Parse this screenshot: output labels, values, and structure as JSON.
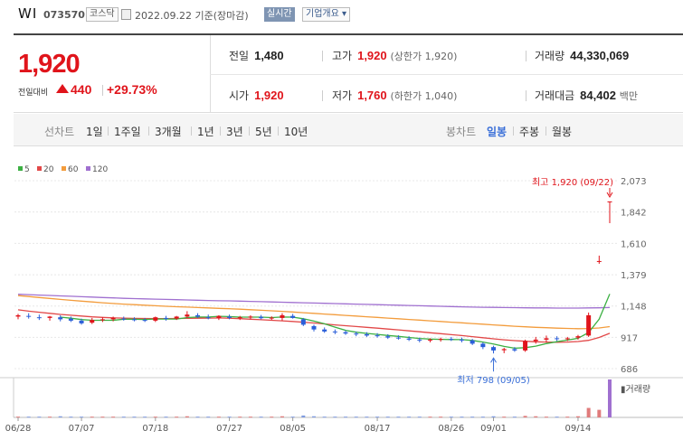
{
  "header": {
    "name": "WI",
    "code": "073570",
    "market": "코스닥",
    "date": "2022.09.22 기준(장마감)",
    "live": "실시간",
    "corp_info": "기업개요 ▾"
  },
  "price": {
    "current": "1,920",
    "change_label": "전일대비",
    "change": "440",
    "change_pct": "+29.73%"
  },
  "stats": {
    "prev_close": {
      "label": "전일",
      "value": "1,480"
    },
    "high": {
      "label": "고가",
      "value": "1,920",
      "sub": "(상한가 1,920)"
    },
    "volume": {
      "label": "거래량",
      "value": "44,330,069"
    },
    "open": {
      "label": "시가",
      "value": "1,920"
    },
    "low": {
      "label": "저가",
      "value": "1,760",
      "sub": "(하한가 1,040)"
    },
    "amount": {
      "label": "거래대금",
      "value": "84,402",
      "unit": "백만"
    }
  },
  "toolbar": {
    "line_label": "선차트",
    "ranges": [
      "1일",
      "1주일",
      "3개월",
      "1년",
      "3년",
      "5년",
      "10년"
    ],
    "candle_label": "봉차트",
    "candles": [
      "일봉",
      "주봉",
      "월봉"
    ],
    "active_candle": "일봉"
  },
  "chart_data": {
    "type": "candlestick",
    "legend": [
      {
        "name": "5",
        "color": "#3cb043"
      },
      {
        "name": "20",
        "color": "#e24848"
      },
      {
        "name": "60",
        "color": "#f39c3c"
      },
      {
        "name": "120",
        "color": "#a070d0"
      }
    ],
    "y_ticks": [
      "2,073",
      "1,842",
      "1,610",
      "1,379",
      "1,148",
      "917",
      "686"
    ],
    "y_tick_values": [
      2073,
      1842,
      1610,
      1379,
      1148,
      917,
      686
    ],
    "ylim": [
      686,
      2073
    ],
    "x_ticks": [
      "06/28",
      "07/07",
      "07/18",
      "07/27",
      "08/05",
      "08/17",
      "08/26",
      "09/01",
      "09/14"
    ],
    "x_tick_index": [
      0,
      6,
      13,
      20,
      26,
      34,
      41,
      45,
      53
    ],
    "high_annotation": "최고 1,920 (09/22)",
    "low_annotation": "최저 798 (09/05)",
    "volume_label": "거래량",
    "candles": [
      [
        1070,
        1090,
        1050,
        1080
      ],
      [
        1075,
        1095,
        1055,
        1070
      ],
      [
        1065,
        1085,
        1045,
        1060
      ],
      [
        1060,
        1075,
        1040,
        1070
      ],
      [
        1065,
        1080,
        1035,
        1050
      ],
      [
        1055,
        1070,
        1030,
        1040
      ],
      [
        1040,
        1055,
        1010,
        1020
      ],
      [
        1025,
        1060,
        1015,
        1045
      ],
      [
        1045,
        1065,
        1030,
        1050
      ],
      [
        1050,
        1070,
        1035,
        1060
      ],
      [
        1055,
        1070,
        1040,
        1050
      ],
      [
        1050,
        1065,
        1035,
        1045
      ],
      [
        1045,
        1060,
        1030,
        1040
      ],
      [
        1040,
        1070,
        1030,
        1065
      ],
      [
        1060,
        1075,
        1040,
        1055
      ],
      [
        1055,
        1075,
        1045,
        1070
      ],
      [
        1070,
        1110,
        1060,
        1085
      ],
      [
        1080,
        1095,
        1060,
        1070
      ],
      [
        1065,
        1085,
        1050,
        1060
      ],
      [
        1060,
        1080,
        1045,
        1075
      ],
      [
        1070,
        1085,
        1050,
        1060
      ],
      [
        1060,
        1075,
        1045,
        1065
      ],
      [
        1065,
        1080,
        1050,
        1070
      ],
      [
        1068,
        1082,
        1050,
        1058
      ],
      [
        1058,
        1072,
        1045,
        1062
      ],
      [
        1060,
        1095,
        1040,
        1080
      ],
      [
        1075,
        1090,
        1055,
        1060
      ],
      [
        1050,
        1060,
        1000,
        1010
      ],
      [
        1000,
        1010,
        960,
        975
      ],
      [
        975,
        990,
        950,
        960
      ],
      [
        960,
        975,
        940,
        955
      ],
      [
        955,
        968,
        935,
        945
      ],
      [
        945,
        960,
        925,
        940
      ],
      [
        940,
        955,
        920,
        930
      ],
      [
        932,
        948,
        915,
        925
      ],
      [
        925,
        940,
        905,
        915
      ],
      [
        915,
        932,
        900,
        910
      ],
      [
        908,
        925,
        890,
        900
      ],
      [
        900,
        915,
        880,
        895
      ],
      [
        895,
        910,
        880,
        900
      ],
      [
        900,
        915,
        885,
        905
      ],
      [
        905,
        920,
        890,
        898
      ],
      [
        900,
        915,
        880,
        895
      ],
      [
        895,
        905,
        860,
        870
      ],
      [
        870,
        880,
        830,
        845
      ],
      [
        845,
        855,
        798,
        820
      ],
      [
        822,
        840,
        800,
        830
      ],
      [
        830,
        845,
        810,
        820
      ],
      [
        820,
        900,
        810,
        890
      ],
      [
        890,
        920,
        870,
        900
      ],
      [
        900,
        930,
        880,
        910
      ],
      [
        910,
        925,
        890,
        905
      ],
      [
        905,
        920,
        890,
        910
      ],
      [
        915,
        935,
        900,
        925
      ],
      [
        930,
        1100,
        920,
        1080
      ],
      [
        1480,
        1520,
        1460,
        1480
      ],
      [
        1920,
        1920,
        1760,
        1920
      ]
    ],
    "ma5": [
      null,
      null,
      null,
      null,
      1066,
      1058,
      1048,
      1043,
      1043,
      1043,
      1051,
      1051,
      1049,
      1052,
      1052,
      1052,
      1063,
      1067,
      1067,
      1072,
      1070,
      1066,
      1066,
      1066,
      1063,
      1067,
      1066,
      1054,
      1037,
      1017,
      992,
      969,
      955,
      946,
      939,
      931,
      924,
      916,
      909,
      904,
      902,
      901,
      900,
      894,
      882,
      868,
      850,
      837,
      841,
      852,
      871,
      885,
      897,
      910,
      952,
      1051,
      1237
    ],
    "ma20": [
      1120,
      1110,
      1102,
      1094,
      1086,
      1080,
      1074,
      1068,
      1064,
      1061,
      1059,
      1057,
      1056,
      1055,
      1055,
      1056,
      1057,
      1058,
      1059,
      1060,
      1058,
      1055,
      1051,
      1047,
      1043,
      1039,
      1034,
      1029,
      1023,
      1016,
      1009,
      1003,
      997,
      991,
      985,
      978,
      972,
      965,
      958,
      951,
      944,
      937,
      930,
      922,
      914,
      906,
      899,
      893,
      888,
      884,
      882,
      881,
      882,
      886,
      895,
      916,
      947
    ],
    "ma60": [
      1225,
      1218,
      1211,
      1204,
      1197,
      1190,
      1184,
      1178,
      1172,
      1167,
      1162,
      1158,
      1154,
      1150,
      1146,
      1143,
      1140,
      1137,
      1134,
      1131,
      1128,
      1125,
      1121,
      1117,
      1113,
      1109,
      1104,
      1099,
      1094,
      1089,
      1084,
      1079,
      1074,
      1069,
      1064,
      1059,
      1054,
      1049,
      1044,
      1039,
      1034,
      1029,
      1024,
      1019,
      1014,
      1009,
      1004,
      999,
      995,
      991,
      988,
      985,
      983,
      981,
      982,
      986,
      996
    ],
    "ma120": [
      1235,
      1232,
      1229,
      1226,
      1223,
      1220,
      1217,
      1214,
      1211,
      1208,
      1205,
      1203,
      1201,
      1199,
      1197,
      1195,
      1193,
      1191,
      1189,
      1187,
      1186,
      1184,
      1182,
      1180,
      1178,
      1176,
      1174,
      1172,
      1170,
      1168,
      1166,
      1164,
      1162,
      1160,
      1158,
      1156,
      1154,
      1152,
      1150,
      1148,
      1146,
      1144,
      1142,
      1140,
      1139,
      1138,
      1137,
      1136,
      1135,
      1134,
      1134,
      1133,
      1133,
      1133,
      1134,
      1135,
      1137
    ],
    "volume": [
      0.02,
      0.02,
      0.02,
      0.02,
      0.03,
      0.02,
      0.02,
      0.02,
      0.02,
      0.02,
      0.02,
      0.02,
      0.02,
      0.02,
      0.02,
      0.02,
      0.03,
      0.02,
      0.02,
      0.02,
      0.02,
      0.02,
      0.02,
      0.02,
      0.02,
      0.03,
      0.02,
      0.05,
      0.03,
      0.02,
      0.02,
      0.02,
      0.02,
      0.02,
      0.02,
      0.02,
      0.02,
      0.02,
      0.02,
      0.02,
      0.02,
      0.02,
      0.02,
      0.02,
      0.02,
      0.03,
      0.02,
      0.02,
      0.04,
      0.03,
      0.02,
      0.02,
      0.02,
      0.03,
      0.25,
      0.2,
      1.0
    ]
  }
}
